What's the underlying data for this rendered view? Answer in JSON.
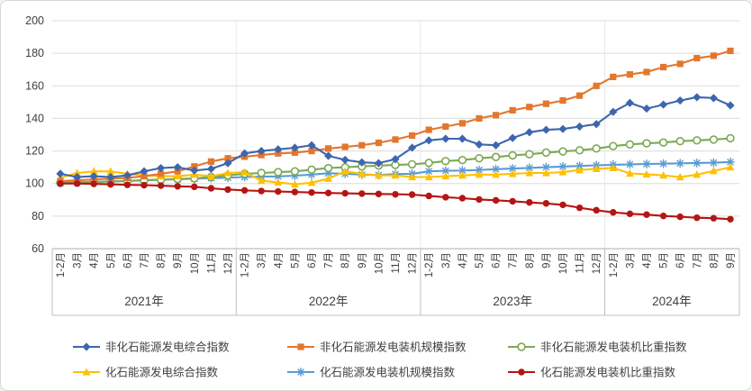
{
  "chart_data": {
    "type": "line",
    "title": "",
    "grid": true,
    "legend_position": "bottom",
    "y_axis": {
      "min": 60,
      "max": 200,
      "step": 20,
      "ticks": [
        200,
        180,
        160,
        140,
        120,
        100,
        80,
        60
      ]
    },
    "x_axis": {
      "groups": [
        {
          "label": "2021年",
          "months": [
            "1-2月",
            "3月",
            "4月",
            "5月",
            "6月",
            "7月",
            "8月",
            "9月",
            "10月",
            "11月",
            "12月"
          ]
        },
        {
          "label": "2022年",
          "months": [
            "1-2月",
            "3月",
            "4月",
            "5月",
            "6月",
            "7月",
            "8月",
            "9月",
            "10月",
            "11月",
            "12月"
          ]
        },
        {
          "label": "2023年",
          "months": [
            "1-2月",
            "3月",
            "4月",
            "5月",
            "6月",
            "7月",
            "8月",
            "9月",
            "10月",
            "11月",
            "12月"
          ]
        },
        {
          "label": "2024年",
          "months": [
            "1-2月",
            "3月",
            "4月",
            "5月",
            "6月",
            "7月",
            "8月",
            "9月"
          ]
        }
      ]
    },
    "series": [
      {
        "name": "非化石能源发电综合指数",
        "color": "#3E66AE",
        "marker": "diamond",
        "values": [
          106,
          104,
          104.5,
          104,
          105,
          107.5,
          109.5,
          110,
          108,
          109,
          112.5,
          118.5,
          120,
          121,
          122,
          123.5,
          117,
          114.5,
          113,
          112.5,
          115,
          122,
          126.5,
          127.5,
          127.5,
          124,
          123.5,
          128,
          131.5,
          133,
          133.5,
          135,
          136.5,
          144,
          149.5,
          146,
          148.5,
          151,
          153,
          152.5,
          148
        ]
      },
      {
        "name": "非化石能源发电装机规模指数",
        "color": "#E3772E",
        "marker": "square",
        "values": [
          101.5,
          102,
          102.5,
          103,
          103.5,
          104.5,
          106,
          107.5,
          110.5,
          113.5,
          115.5,
          116.5,
          117.5,
          118.5,
          119,
          120,
          121.5,
          122.5,
          123.5,
          125,
          127,
          129.5,
          133,
          135,
          137,
          140,
          142,
          145,
          147,
          149,
          151,
          154,
          160,
          165.5,
          167,
          168.5,
          171.5,
          173.5,
          177,
          178.5,
          181.5
        ]
      },
      {
        "name": "非化石能源发电装机比重指数",
        "color": "#7CA953",
        "marker": "circle-open",
        "values": [
          100.5,
          100.8,
          101,
          101.3,
          101.6,
          102,
          102.4,
          102.8,
          103.2,
          104,
          105,
          106,
          106.5,
          107,
          107.5,
          108.5,
          109.5,
          110,
          110.5,
          111,
          111.4,
          111.8,
          112.7,
          113.8,
          114.4,
          115.5,
          116.3,
          117.3,
          118,
          119,
          119.7,
          120.4,
          121.5,
          123,
          124,
          124.7,
          125.2,
          126,
          126.5,
          127,
          127.8
        ]
      },
      {
        "name": "化石能源发电综合指数",
        "color": "#FFC000",
        "marker": "triangle",
        "values": [
          103.5,
          106.5,
          107.5,
          107.5,
          106,
          105,
          104.5,
          104.5,
          105.5,
          104.5,
          106.5,
          107,
          101.7,
          100.7,
          99.5,
          100.5,
          103,
          107.5,
          106,
          105,
          105,
          104,
          104,
          104.5,
          105,
          105.5,
          105.5,
          106,
          106.5,
          106.5,
          107,
          108.3,
          109,
          109.6,
          106.2,
          105.7,
          105,
          104,
          105.5,
          107.7,
          110
        ]
      },
      {
        "name": "化石能源发电装机规模指数",
        "color": "#5B9BD5",
        "marker": "asterisk",
        "values": [
          100.3,
          100.6,
          101,
          101.3,
          101.6,
          102,
          102.3,
          102.6,
          103,
          103.3,
          103.6,
          104,
          104.2,
          104.4,
          104.8,
          105.5,
          106.3,
          106,
          105.5,
          105.2,
          105.8,
          106,
          107.5,
          107.8,
          108,
          108.3,
          108.8,
          109.2,
          109.6,
          110,
          110.4,
          110.8,
          111.2,
          111.5,
          111.8,
          112,
          112.2,
          112.4,
          112.6,
          112.8,
          113.2
        ]
      },
      {
        "name": "化石能源发电装机比重指数",
        "color": "#B51514",
        "marker": "circle",
        "values": [
          100,
          100,
          99.8,
          99.5,
          99.2,
          99,
          98.7,
          98.3,
          98,
          97.1,
          96.3,
          95.8,
          95.4,
          95.1,
          94.8,
          94.5,
          94.2,
          94,
          93.8,
          93.6,
          93.4,
          93.2,
          92.4,
          91.6,
          91,
          90.2,
          89.7,
          89.1,
          88.4,
          87.8,
          86.9,
          85.1,
          83.6,
          82.3,
          81.4,
          80.9,
          80.1,
          79.6,
          79,
          78.7,
          78.1
        ]
      }
    ],
    "legend": {
      "rows": [
        [
          "非化石能源发电综合指数",
          "非化石能源发电装机规模指数",
          "非化石能源发电装机比重指数"
        ],
        [
          "化石能源发电综合指数",
          "化石能源发电装机规模指数",
          "化石能源发电装机比重指数"
        ]
      ]
    },
    "colors": {
      "gridline": "#DCDCDC",
      "axis_line": "#BFBFBF",
      "text": "#404040"
    }
  }
}
